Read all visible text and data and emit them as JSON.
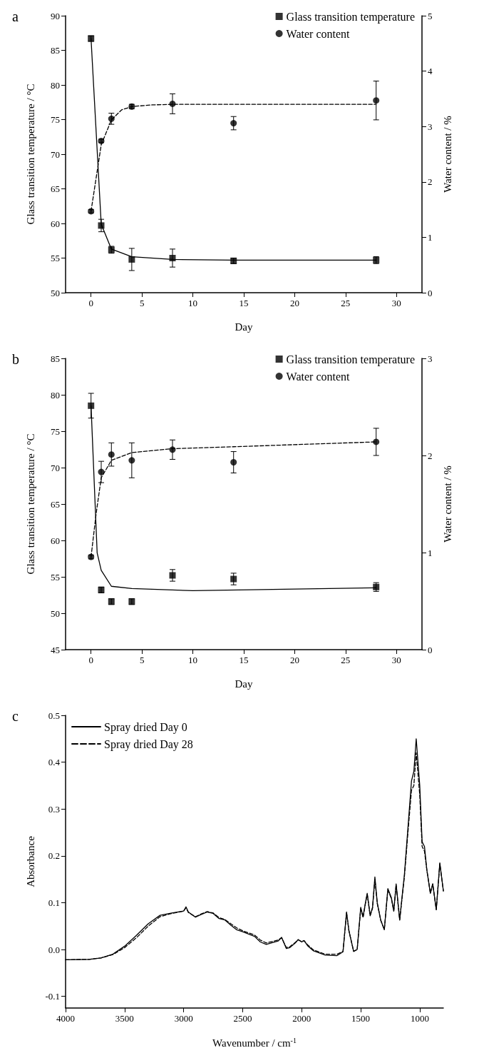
{
  "chart_data": [
    {
      "type": "scatter",
      "title": "a",
      "xlabel": "Day",
      "ylabel": "Glass transition temperature / °C",
      "y2label": "Water content / %",
      "xlim": [
        -2.5,
        32.5
      ],
      "xticks": [
        0,
        5,
        10,
        15,
        20,
        25,
        30
      ],
      "ylim": [
        50,
        90
      ],
      "yticks": [
        50,
        55,
        60,
        65,
        70,
        75,
        80,
        85,
        90
      ],
      "y2lim": [
        0,
        5
      ],
      "y2ticks": [
        0,
        1,
        2,
        3,
        4,
        5
      ],
      "legend": "top right",
      "series": [
        {
          "name": "Glass transition temperature",
          "type": "scatter",
          "marker": "square",
          "color": "#000000",
          "x": [
            0,
            1,
            2,
            4,
            8,
            14,
            28
          ],
          "values": [
            86.7,
            59.7,
            56.2,
            54.8,
            55.0,
            54.6,
            54.7
          ],
          "errors": [
            0.4,
            0.9,
            0.5,
            1.6,
            1.3,
            0.4,
            0.5
          ]
        },
        {
          "name": "Water content",
          "type": "scatter",
          "marker": "circle",
          "axis": "y2",
          "color": "#000000",
          "x": [
            0,
            1,
            2,
            4,
            8,
            14,
            28
          ],
          "values": [
            1.47,
            2.74,
            3.14,
            3.36,
            3.41,
            3.06,
            3.47
          ],
          "errors": [
            0.03,
            0.03,
            0.1,
            0.04,
            0.18,
            0.12,
            0.35
          ]
        },
        {
          "type": "line",
          "marker": "none",
          "line_style": "solid",
          "color": "#000000",
          "x": [
            0,
            1,
            2,
            4,
            8,
            14,
            28
          ],
          "values": [
            86.7,
            59.9,
            56.3,
            55.2,
            54.8,
            54.7,
            54.7
          ]
        },
        {
          "type": "line",
          "marker": "none",
          "line_style": "dashed",
          "axis": "y2",
          "color": "#000000",
          "x": [
            0,
            1,
            2,
            3,
            4,
            6,
            8,
            14,
            28
          ],
          "values": [
            1.47,
            2.67,
            3.12,
            3.3,
            3.36,
            3.39,
            3.4,
            3.4,
            3.4
          ]
        }
      ]
    },
    {
      "type": "scatter",
      "title": "b",
      "xlabel": "Day",
      "ylabel": "Glass transition temperature / °C",
      "y2label": "Water content / %",
      "xlim": [
        -2.5,
        32.5
      ],
      "xticks": [
        0,
        5,
        10,
        15,
        20,
        25,
        30
      ],
      "ylim": [
        45,
        85
      ],
      "yticks": [
        45,
        50,
        55,
        60,
        65,
        70,
        75,
        80,
        85
      ],
      "y2lim": [
        0,
        3
      ],
      "y2ticks": [
        0,
        1,
        2,
        3
      ],
      "legend": "top right",
      "series": [
        {
          "name": "Glass transition temperature",
          "type": "scatter",
          "marker": "square",
          "color": "#000000",
          "x": [
            0,
            1,
            2,
            4,
            8,
            14,
            28
          ],
          "values": [
            78.5,
            53.2,
            51.6,
            51.6,
            55.2,
            54.7,
            53.6
          ],
          "errors": [
            1.7,
            0.4,
            0.4,
            0.4,
            0.8,
            0.8,
            0.6
          ]
        },
        {
          "name": "Water content",
          "type": "scatter",
          "marker": "circle",
          "axis": "y2",
          "color": "#000000",
          "x": [
            0,
            1,
            2,
            4,
            8,
            14,
            28
          ],
          "values": [
            0.955,
            1.83,
            2.01,
            1.95,
            2.06,
            1.93,
            2.14
          ],
          "errors": [
            0.02,
            0.11,
            0.12,
            0.18,
            0.1,
            0.11,
            0.14
          ]
        },
        {
          "type": "line",
          "marker": "none",
          "line_style": "solid",
          "color": "#000000",
          "x": [
            0,
            0.6,
            1,
            2,
            4,
            10,
            28
          ],
          "values": [
            78.5,
            58.3,
            55.9,
            53.7,
            53.4,
            53.1,
            53.5
          ]
        },
        {
          "type": "line",
          "marker": "none",
          "line_style": "dashed",
          "axis": "y2",
          "color": "#000000",
          "x": [
            0,
            0.5,
            1,
            2,
            4,
            8,
            14,
            28
          ],
          "values": [
            0.955,
            1.4,
            1.77,
            1.95,
            2.03,
            2.07,
            2.09,
            2.14
          ]
        }
      ]
    },
    {
      "type": "line",
      "title": "c",
      "xlabel": "Wavenumber / cm$^{-1}$",
      "ylabel": "Absorbance",
      "xlim": [
        4000,
        800
      ],
      "xticks": [
        4000,
        3500,
        3000,
        2500,
        2000,
        1500,
        1000
      ],
      "ylim": [
        -0.125,
        0.5
      ],
      "yticks": [
        -0.1,
        {
          "value": 0,
          "label": "0.0"
        },
        0.1,
        0.2,
        0.3,
        0.4,
        0.5
      ],
      "legend": "top left",
      "marker": "none",
      "series": [
        {
          "name": "Spray dried Day 0",
          "line_style": "solid",
          "color": "#000000",
          "x": [
            4000,
            3800,
            3700,
            3600,
            3500,
            3400,
            3300,
            3200,
            3100,
            3000,
            2980,
            2960,
            2900,
            2850,
            2800,
            2750,
            2700,
            2650,
            2600,
            2550,
            2500,
            2400,
            2350,
            2300,
            2200,
            2170,
            2130,
            2100,
            2050,
            2030,
            2000,
            1980,
            1950,
            1900,
            1800,
            1700,
            1650,
            1620,
            1600,
            1560,
            1530,
            1500,
            1480,
            1460,
            1445,
            1420,
            1400,
            1380,
            1360,
            1330,
            1300,
            1270,
            1240,
            1220,
            1200,
            1170,
            1130,
            1100,
            1070,
            1050,
            1030,
            1000,
            980,
            960,
            940,
            910,
            890,
            860,
            830,
            800
          ],
          "values": [
            -0.022,
            -0.021,
            -0.018,
            -0.01,
            0.007,
            0.03,
            0.055,
            0.073,
            0.078,
            0.082,
            0.091,
            0.08,
            0.069,
            0.075,
            0.08,
            0.077,
            0.066,
            0.063,
            0.052,
            0.042,
            0.038,
            0.028,
            0.016,
            0.011,
            0.018,
            0.026,
            0.002,
            0.004,
            0.015,
            0.021,
            0.016,
            0.019,
            0.008,
            -0.003,
            -0.012,
            -0.013,
            -0.005,
            0.08,
            0.04,
            -0.004,
            0.0,
            0.09,
            0.07,
            0.1,
            0.12,
            0.073,
            0.09,
            0.155,
            0.1,
            0.062,
            0.042,
            0.13,
            0.11,
            0.082,
            0.14,
            0.063,
            0.16,
            0.26,
            0.36,
            0.38,
            0.45,
            0.35,
            0.23,
            0.22,
            0.17,
            0.12,
            0.14,
            0.085,
            0.185,
            0.125
          ]
        },
        {
          "name": "Spray dried Day 28",
          "line_style": "dashed",
          "color": "#000000",
          "x": [
            4000,
            3800,
            3700,
            3600,
            3500,
            3400,
            3300,
            3200,
            3100,
            3000,
            2980,
            2960,
            2900,
            2850,
            2800,
            2750,
            2700,
            2650,
            2600,
            2550,
            2500,
            2400,
            2350,
            2300,
            2200,
            2170,
            2130,
            2100,
            2050,
            2030,
            2000,
            1980,
            1950,
            1900,
            1800,
            1700,
            1650,
            1620,
            1600,
            1560,
            1530,
            1500,
            1480,
            1460,
            1445,
            1420,
            1400,
            1380,
            1360,
            1330,
            1300,
            1270,
            1240,
            1220,
            1200,
            1170,
            1130,
            1100,
            1070,
            1050,
            1030,
            1000,
            980,
            960,
            940,
            910,
            890,
            860,
            830,
            800
          ],
          "values": [
            -0.022,
            -0.021,
            -0.018,
            -0.011,
            0.004,
            0.025,
            0.05,
            0.07,
            0.077,
            0.082,
            0.089,
            0.079,
            0.07,
            0.076,
            0.081,
            0.078,
            0.068,
            0.064,
            0.055,
            0.046,
            0.04,
            0.031,
            0.02,
            0.014,
            0.02,
            0.025,
            0.004,
            0.006,
            0.016,
            0.021,
            0.017,
            0.019,
            0.01,
            -0.001,
            -0.01,
            -0.01,
            -0.004,
            0.078,
            0.04,
            -0.004,
            0.0,
            0.087,
            0.068,
            0.098,
            0.118,
            0.072,
            0.088,
            0.15,
            0.098,
            0.062,
            0.043,
            0.128,
            0.108,
            0.082,
            0.138,
            0.063,
            0.155,
            0.25,
            0.34,
            0.35,
            0.42,
            0.33,
            0.22,
            0.21,
            0.17,
            0.12,
            0.14,
            0.085,
            0.183,
            0.125
          ]
        }
      ]
    }
  ]
}
